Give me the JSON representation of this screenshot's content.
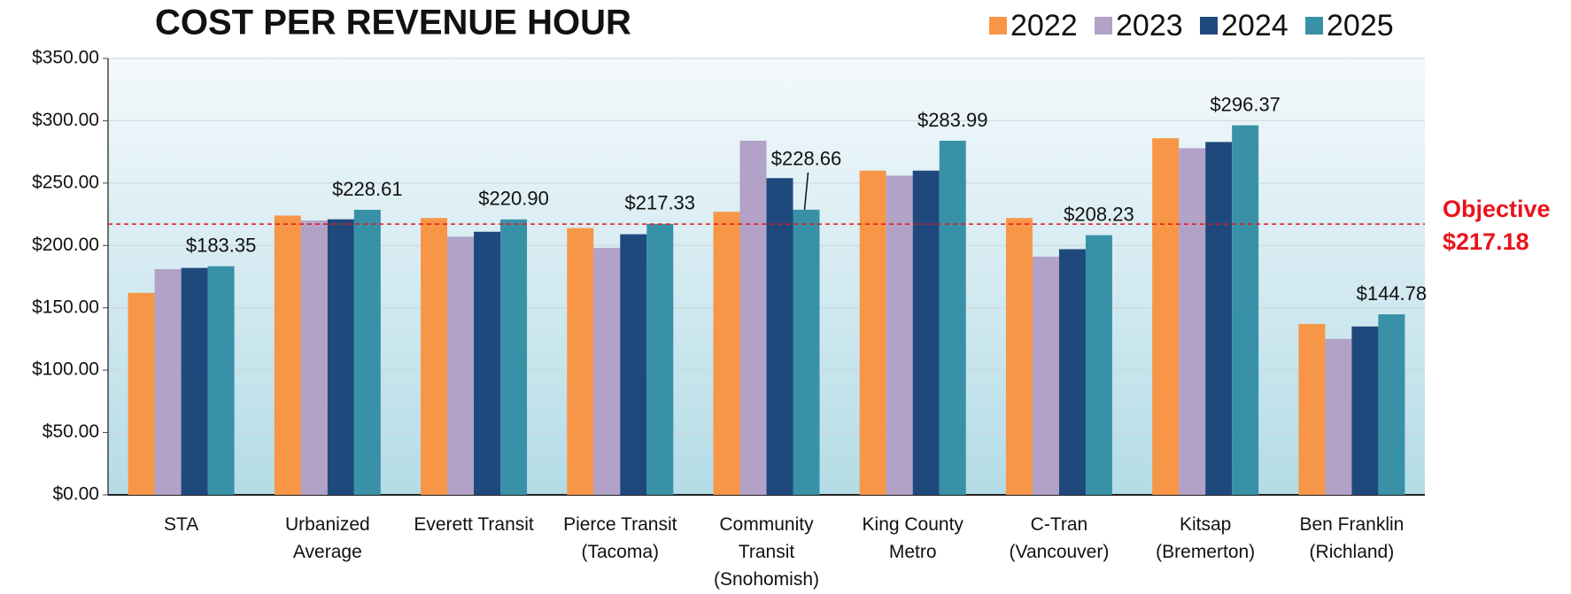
{
  "chart_data": {
    "type": "bar",
    "title": "COST PER REVENUE HOUR",
    "categories": [
      "STA",
      "Urbanized\nAverage",
      "Everett Transit",
      "Pierce Transit\n(Tacoma)",
      "Community\nTransit\n(Snohomish)",
      "King County\nMetro",
      "C-Tran\n(Vancouver)",
      "Kitsap\n(Bremerton)",
      "Ben Franklin\n(Richland)"
    ],
    "series": [
      {
        "name": "2022",
        "color": "#f79646",
        "values": [
          162,
          224,
          222,
          214,
          227,
          260,
          222,
          286,
          137
        ]
      },
      {
        "name": "2023",
        "color": "#b2a2c7",
        "values": [
          181,
          220,
          207,
          198,
          284,
          256,
          191,
          278,
          125
        ]
      },
      {
        "name": "2024",
        "color": "#1f497d",
        "values": [
          182,
          221,
          211,
          209,
          254,
          260,
          197,
          283,
          135
        ]
      },
      {
        "name": "2025",
        "color": "#3891a7",
        "values": [
          183.35,
          228.61,
          220.9,
          217.33,
          228.66,
          283.99,
          208.23,
          296.37,
          144.78
        ],
        "value_labels": [
          "$183.35",
          "$228.61",
          "$220.90",
          "$217.33",
          "$228.66",
          "$283.99",
          "$208.23",
          "$296.37",
          "$144.78"
        ]
      }
    ],
    "ylim": [
      0,
      350
    ],
    "yticks": [
      {
        "value": 0,
        "label": "$0.00"
      },
      {
        "value": 50,
        "label": "$50.00"
      },
      {
        "value": 100,
        "label": "$100.00"
      },
      {
        "value": 150,
        "label": "$150.00"
      },
      {
        "value": 200,
        "label": "$200.00"
      },
      {
        "value": 250,
        "label": "$250.00"
      },
      {
        "value": 300,
        "label": "$300.00"
      },
      {
        "value": 350,
        "label": "$350.00"
      }
    ],
    "grid": true,
    "legend": "top-right",
    "objective": {
      "value": 217.18,
      "label": "Objective",
      "value_label": "$217.18",
      "color": "#e8141b"
    }
  }
}
